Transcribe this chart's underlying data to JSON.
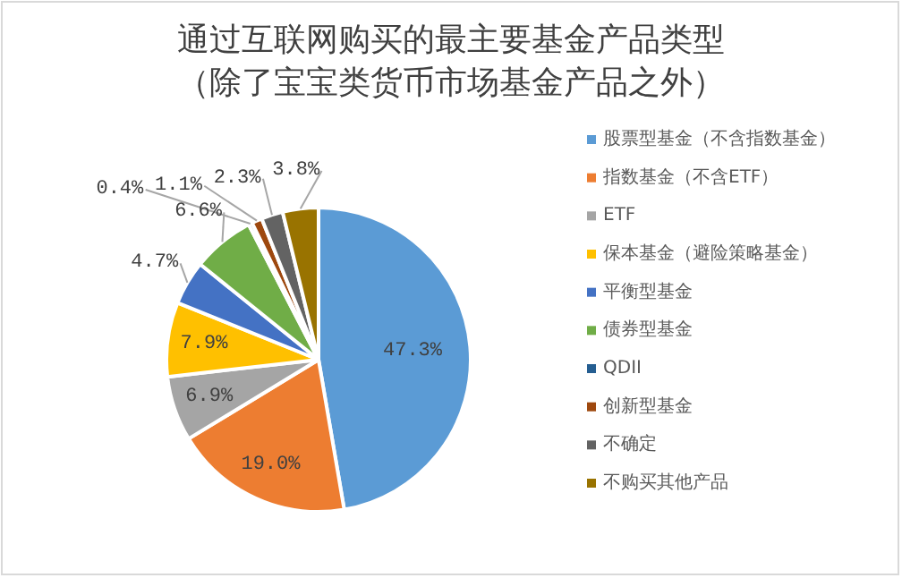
{
  "chart_data": {
    "type": "pie",
    "title": "通过互联网购买的最主要基金产品类型",
    "subtitle": "（除了宝宝类货币市场基金产品之外）",
    "categories": [
      "股票型基金（不含指数基金）",
      "指数基金（不含ETF）",
      "ETF",
      "保本基金（避险策略基金）",
      "平衡型基金",
      "债券型基金",
      "QDII",
      "创新型基金",
      "不确定",
      "不购买其他产品"
    ],
    "values": [
      47.3,
      19.0,
      6.9,
      7.9,
      4.7,
      6.6,
      0.4,
      1.1,
      2.3,
      3.8
    ],
    "value_labels": [
      "47.3%",
      "19.0%",
      "6.9%",
      "7.9%",
      "4.7%",
      "6.6%",
      "0.4%",
      "1.1%",
      "2.3%",
      "3.8%"
    ],
    "colors": [
      "#5b9bd5",
      "#ed7d31",
      "#a5a5a5",
      "#ffc000",
      "#4472c4",
      "#70ad47",
      "#255e91",
      "#9e480e",
      "#636363",
      "#997300"
    ],
    "legend": "right"
  }
}
